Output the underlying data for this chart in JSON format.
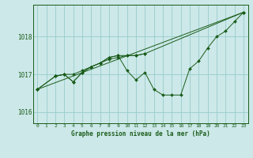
{
  "title": "Graphe pression niveau de la mer (hPa)",
  "bg_color": "#cce8e8",
  "grid_color": "#99cccc",
  "line_color": "#1a5c1a",
  "ylim": [
    1015.7,
    1018.85
  ],
  "xlim": [
    -0.5,
    23.5
  ],
  "yticks": [
    1016,
    1017,
    1018
  ],
  "xticks": [
    0,
    1,
    2,
    3,
    4,
    5,
    6,
    7,
    8,
    9,
    10,
    11,
    12,
    13,
    14,
    15,
    16,
    17,
    18,
    19,
    20,
    21,
    22,
    23
  ],
  "series": [
    {
      "x": [
        0,
        23
      ],
      "y": [
        1016.6,
        1018.65
      ]
    },
    {
      "x": [
        0,
        2,
        3,
        4,
        5,
        6,
        7,
        8,
        9,
        10,
        11,
        12,
        13,
        14,
        15,
        16,
        17,
        18,
        19,
        20,
        21,
        22,
        23
      ],
      "y": [
        1016.6,
        1016.95,
        1017.0,
        1016.8,
        1017.05,
        1017.2,
        1017.3,
        1017.45,
        1017.5,
        1017.1,
        1016.85,
        1017.05,
        1016.6,
        1016.45,
        1016.45,
        1016.45,
        1017.15,
        1017.35,
        1017.7,
        1018.0,
        1018.15,
        1018.4,
        1018.65
      ]
    },
    {
      "x": [
        0,
        2,
        3,
        4,
        5,
        6,
        7,
        8,
        9,
        10,
        11,
        12,
        23
      ],
      "y": [
        1016.6,
        1016.95,
        1017.0,
        1017.0,
        1017.1,
        1017.2,
        1017.3,
        1017.4,
        1017.45,
        1017.5,
        1017.5,
        1017.55,
        1018.65
      ]
    },
    {
      "x": [
        2,
        3,
        4,
        5,
        6,
        7,
        8,
        9,
        10,
        11,
        12
      ],
      "y": [
        1016.95,
        1017.0,
        1016.8,
        1017.05,
        1017.2,
        1017.3,
        1017.45,
        1017.5,
        1017.5,
        1017.5,
        1017.55
      ]
    }
  ]
}
